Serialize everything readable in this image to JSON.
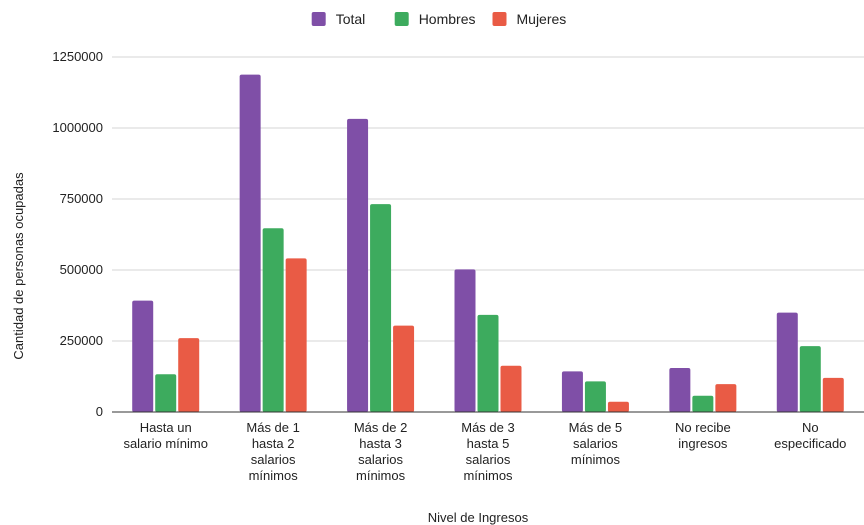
{
  "chart_data": {
    "type": "bar",
    "xlabel": "Nivel de Ingresos",
    "ylabel": "Cantidad de personas ocupadas",
    "ylim": [
      0,
      1250000
    ],
    "yticks": [
      "0",
      "250000",
      "500000",
      "750000",
      "1000000",
      "1250000"
    ],
    "grid": true,
    "legend_position": "top-center",
    "categories": [
      [
        "Hasta un",
        "salario mínimo"
      ],
      [
        "Más de 1",
        "hasta 2",
        "salarios",
        "mínimos"
      ],
      [
        "Más de 2",
        "hasta 3",
        "salarios",
        "mínimos"
      ],
      [
        "Más de 3",
        "hasta 5",
        "salarios",
        "mínimos"
      ],
      [
        "Más de 5",
        "salarios",
        "mínimos"
      ],
      [
        "No recibe",
        "ingresos"
      ],
      [
        "No",
        "especificado"
      ]
    ],
    "series": [
      {
        "name": "Total",
        "color": "#7f4fa7",
        "values": [
          392000,
          1188000,
          1032000,
          502000,
          143000,
          155000,
          350000
        ]
      },
      {
        "name": "Hombres",
        "color": "#3dab5e",
        "values": [
          133000,
          647000,
          732000,
          342000,
          108000,
          57000,
          232000
        ]
      },
      {
        "name": "Mujeres",
        "color": "#e95b45",
        "values": [
          260000,
          541000,
          304000,
          163000,
          36000,
          98000,
          120000
        ]
      }
    ]
  }
}
